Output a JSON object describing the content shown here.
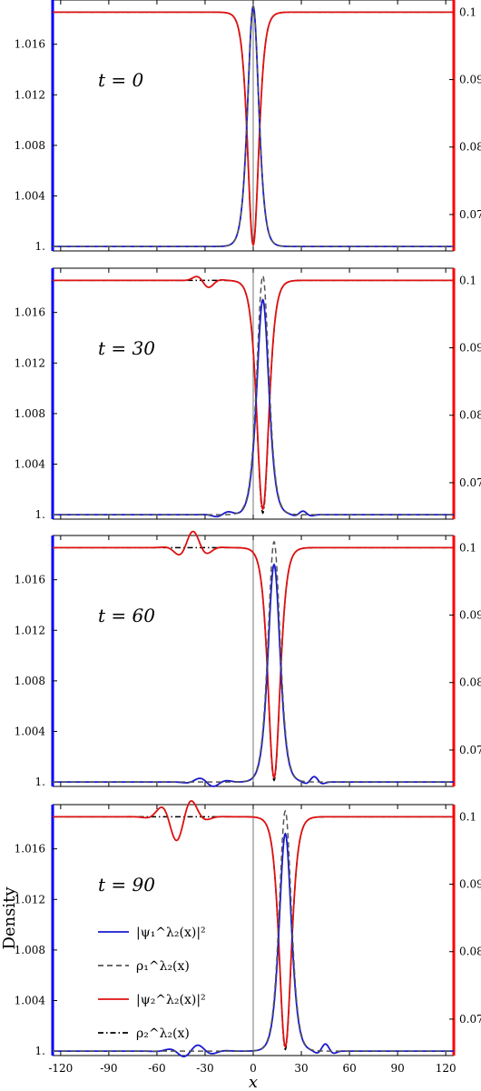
{
  "chart_data": {
    "type": "line",
    "xlabel": "x",
    "ylabel": "Density",
    "xlim": [
      -125,
      125
    ],
    "x_ticks": [
      -120,
      -90,
      -60,
      -30,
      0,
      30,
      60,
      90,
      120
    ],
    "left_axis": {
      "ylim": [
        0.99965,
        1.0195
      ],
      "ticks": [
        1.0,
        1.004,
        1.008,
        1.012,
        1.016
      ],
      "tick_labels": [
        "1.",
        "1.004",
        "1.008",
        "1.012",
        "1.016"
      ],
      "color": "#0000ff"
    },
    "right_axis": {
      "ylim": [
        0.0646,
        0.1018
      ],
      "ticks": [
        0.07,
        0.08,
        0.09,
        0.1
      ],
      "tick_labels": [
        "0.07",
        "0.08",
        "0.09",
        "0.1"
      ],
      "color": "#ff0000"
    },
    "colors": {
      "psi1": "#1a1acc",
      "rho1": "#555555",
      "psi2": "#dd1111",
      "rho2": "#000000"
    },
    "legend": {
      "placement": "center-left",
      "entries": [
        {
          "label": "|ψ₁^λ₂(x)|²",
          "style": "solid",
          "color": "#1a1acc"
        },
        {
          "label": "ρ₁^λ₂(x)",
          "style": "dashed",
          "color": "#555555"
        },
        {
          "label": "|ψ₂^λ₂(x)|²",
          "style": "solid",
          "color": "#dd1111"
        },
        {
          "label": "ρ₂^λ₂(x)",
          "style": "dashdot",
          "color": "#000000"
        }
      ]
    },
    "panels": [
      {
        "label": "t = 0",
        "center": 0,
        "bump_peak": 1.019,
        "dark_peak": 1.019,
        "dip_min": 0.0655,
        "dark_dip_min": 0.0655,
        "width": 4.6
      },
      {
        "label": "t = 30",
        "center": 6,
        "bump_peak": 1.017,
        "dark_peak": 1.0189,
        "dip_min": 0.0661,
        "dark_dip_min": 0.0655,
        "width": 5.0
      },
      {
        "label": "t = 60",
        "center": 13,
        "bump_peak": 1.0172,
        "dark_peak": 1.019,
        "dip_min": 0.0659,
        "dark_dip_min": 0.0655,
        "width": 5.0
      },
      {
        "label": "t = 90",
        "center": 20,
        "bump_peak": 1.0172,
        "dark_peak": 1.019,
        "dip_min": 0.0659,
        "dark_dip_min": 0.0655,
        "width": 5.0
      }
    ]
  }
}
